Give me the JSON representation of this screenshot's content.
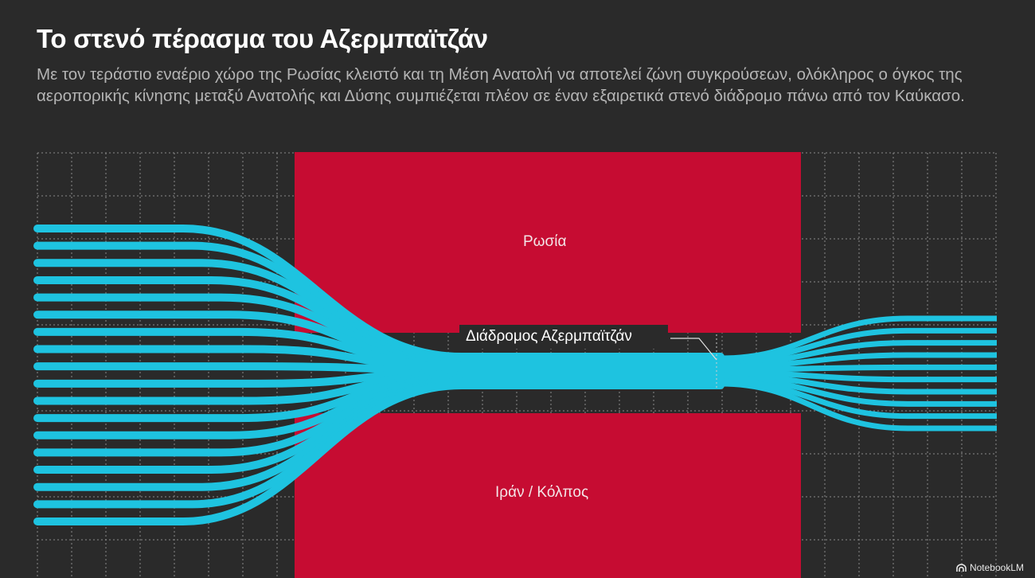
{
  "title": "Το στενό πέρασμα του Αζερμπαϊτζάν",
  "subtitle": "Με τον τεράστιο εναέριο χώρο της Ρωσίας κλειστό και τη Μέση Ανατολή να αποτελεί ζώνη συγκρούσεων, ολόκληρος ο όγκος της αεροπορικής κίνησης μεταξύ Ανατολής και Δύσης συμπιέζεται πλέον σε έναν εξαιρετικά στενό διάδρομο πάνω από τον Καύκασο.",
  "regions": {
    "north": "Ρωσία",
    "south": "Ιράν / Κόλπος"
  },
  "corridor_label": "Διάδρομος Αζερμπαϊτζάν",
  "colors": {
    "background": "#2a2a2a",
    "region": "#c60c32",
    "flight_paths": "#1ec3e0",
    "grid": "#8a8a8a"
  },
  "flows": {
    "west_paths": 18,
    "east_paths": 10
  },
  "brand": "NotebookLM",
  "brand_icon": "notebooklm-logo-icon"
}
